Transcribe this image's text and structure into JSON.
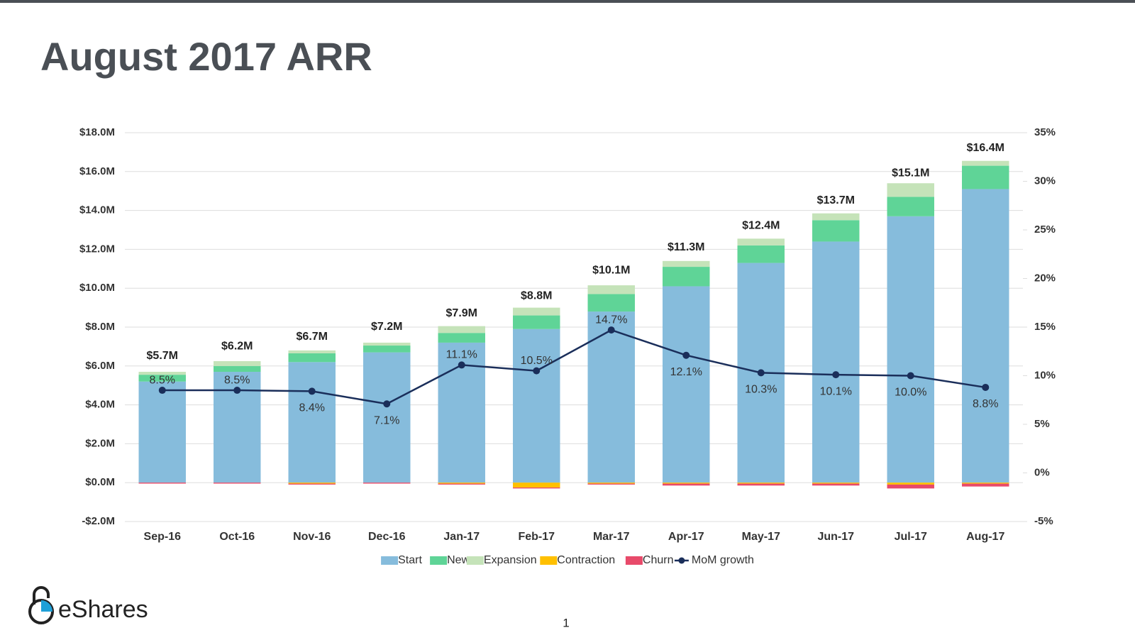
{
  "chart_data": {
    "type": "stacked-bar-line",
    "title": "August 2017 ARR",
    "categories": [
      "Sep-16",
      "Oct-16",
      "Nov-16",
      "Dec-16",
      "Jan-17",
      "Feb-17",
      "Mar-17",
      "Apr-17",
      "May-17",
      "Jun-17",
      "Jul-17",
      "Aug-17"
    ],
    "series": [
      {
        "name": "Start",
        "color": "#86bcdc",
        "values": [
          5.2,
          5.7,
          6.2,
          6.7,
          7.2,
          7.9,
          8.8,
          10.1,
          11.3,
          12.4,
          13.7,
          15.1
        ]
      },
      {
        "name": "New",
        "color": "#5fd497",
        "values": [
          0.35,
          0.3,
          0.45,
          0.35,
          0.5,
          0.7,
          0.9,
          1.0,
          0.9,
          1.1,
          1.0,
          1.2
        ]
      },
      {
        "name": "Expansion",
        "color": "#c5e3b9",
        "values": [
          0.15,
          0.25,
          0.15,
          0.15,
          0.35,
          0.4,
          0.45,
          0.3,
          0.35,
          0.35,
          0.7,
          0.25
        ]
      },
      {
        "name": "Contraction",
        "color": "#ffc000",
        "values": [
          0,
          0,
          -0.05,
          0,
          -0.05,
          -0.25,
          -0.05,
          -0.05,
          -0.05,
          -0.05,
          -0.1,
          -0.05
        ]
      },
      {
        "name": "Churn",
        "color": "#e84a6a",
        "values": [
          -0.05,
          -0.05,
          -0.05,
          -0.05,
          -0.05,
          -0.05,
          -0.05,
          -0.1,
          -0.1,
          -0.1,
          -0.2,
          -0.15
        ]
      },
      {
        "name": "MoM growth",
        "color": "#1a2e5a",
        "axis": "y2",
        "type": "line",
        "values": [
          8.5,
          8.5,
          8.4,
          7.1,
          11.1,
          10.5,
          14.7,
          12.1,
          10.3,
          10.1,
          10.0,
          8.8
        ],
        "value_labels": [
          "8.5%",
          "8.5%",
          "8.4%",
          "7.1%",
          "11.1%",
          "10.5%",
          "14.7%",
          "12.1%",
          "10.3%",
          "10.1%",
          "10.0%",
          "8.8%"
        ]
      }
    ],
    "totals": {
      "values": [
        5.7,
        6.2,
        6.7,
        7.2,
        7.9,
        8.8,
        10.1,
        11.3,
        12.4,
        13.7,
        15.1,
        16.4
      ],
      "value_labels": [
        "$5.7M",
        "$6.2M",
        "$6.7M",
        "$7.2M",
        "$7.9M",
        "$8.8M",
        "$10.1M",
        "$11.3M",
        "$12.4M",
        "$13.7M",
        "$15.1M",
        "$16.4M"
      ]
    },
    "ylim": [
      -2,
      18
    ],
    "yticks": [
      {
        "value": -2,
        "label": "-$2.0M"
      },
      {
        "value": 0,
        "label": "$0.0M"
      },
      {
        "value": 2,
        "label": "$2.0M"
      },
      {
        "value": 4,
        "label": "$4.0M"
      },
      {
        "value": 6,
        "label": "$6.0M"
      },
      {
        "value": 8,
        "label": "$8.0M"
      },
      {
        "value": 10,
        "label": "$10.0M"
      },
      {
        "value": 12,
        "label": "$12.0M"
      },
      {
        "value": 14,
        "label": "$14.0M"
      },
      {
        "value": 16,
        "label": "$16.0M"
      },
      {
        "value": 18,
        "label": "$18.0M"
      }
    ],
    "y2lim": [
      -5,
      35
    ],
    "y2ticks": [
      {
        "value": -5,
        "label": "-5%"
      },
      {
        "value": 0,
        "label": "0%"
      },
      {
        "value": 5,
        "label": "5%"
      },
      {
        "value": 10,
        "label": "10%"
      },
      {
        "value": 15,
        "label": "15%"
      },
      {
        "value": 20,
        "label": "20%"
      },
      {
        "value": 25,
        "label": "25%"
      },
      {
        "value": 30,
        "label": "30%"
      },
      {
        "value": 35,
        "label": "35%"
      }
    ],
    "grid": true,
    "legend": "bottom"
  },
  "footer": {
    "logo": "eShares",
    "page": "1"
  }
}
